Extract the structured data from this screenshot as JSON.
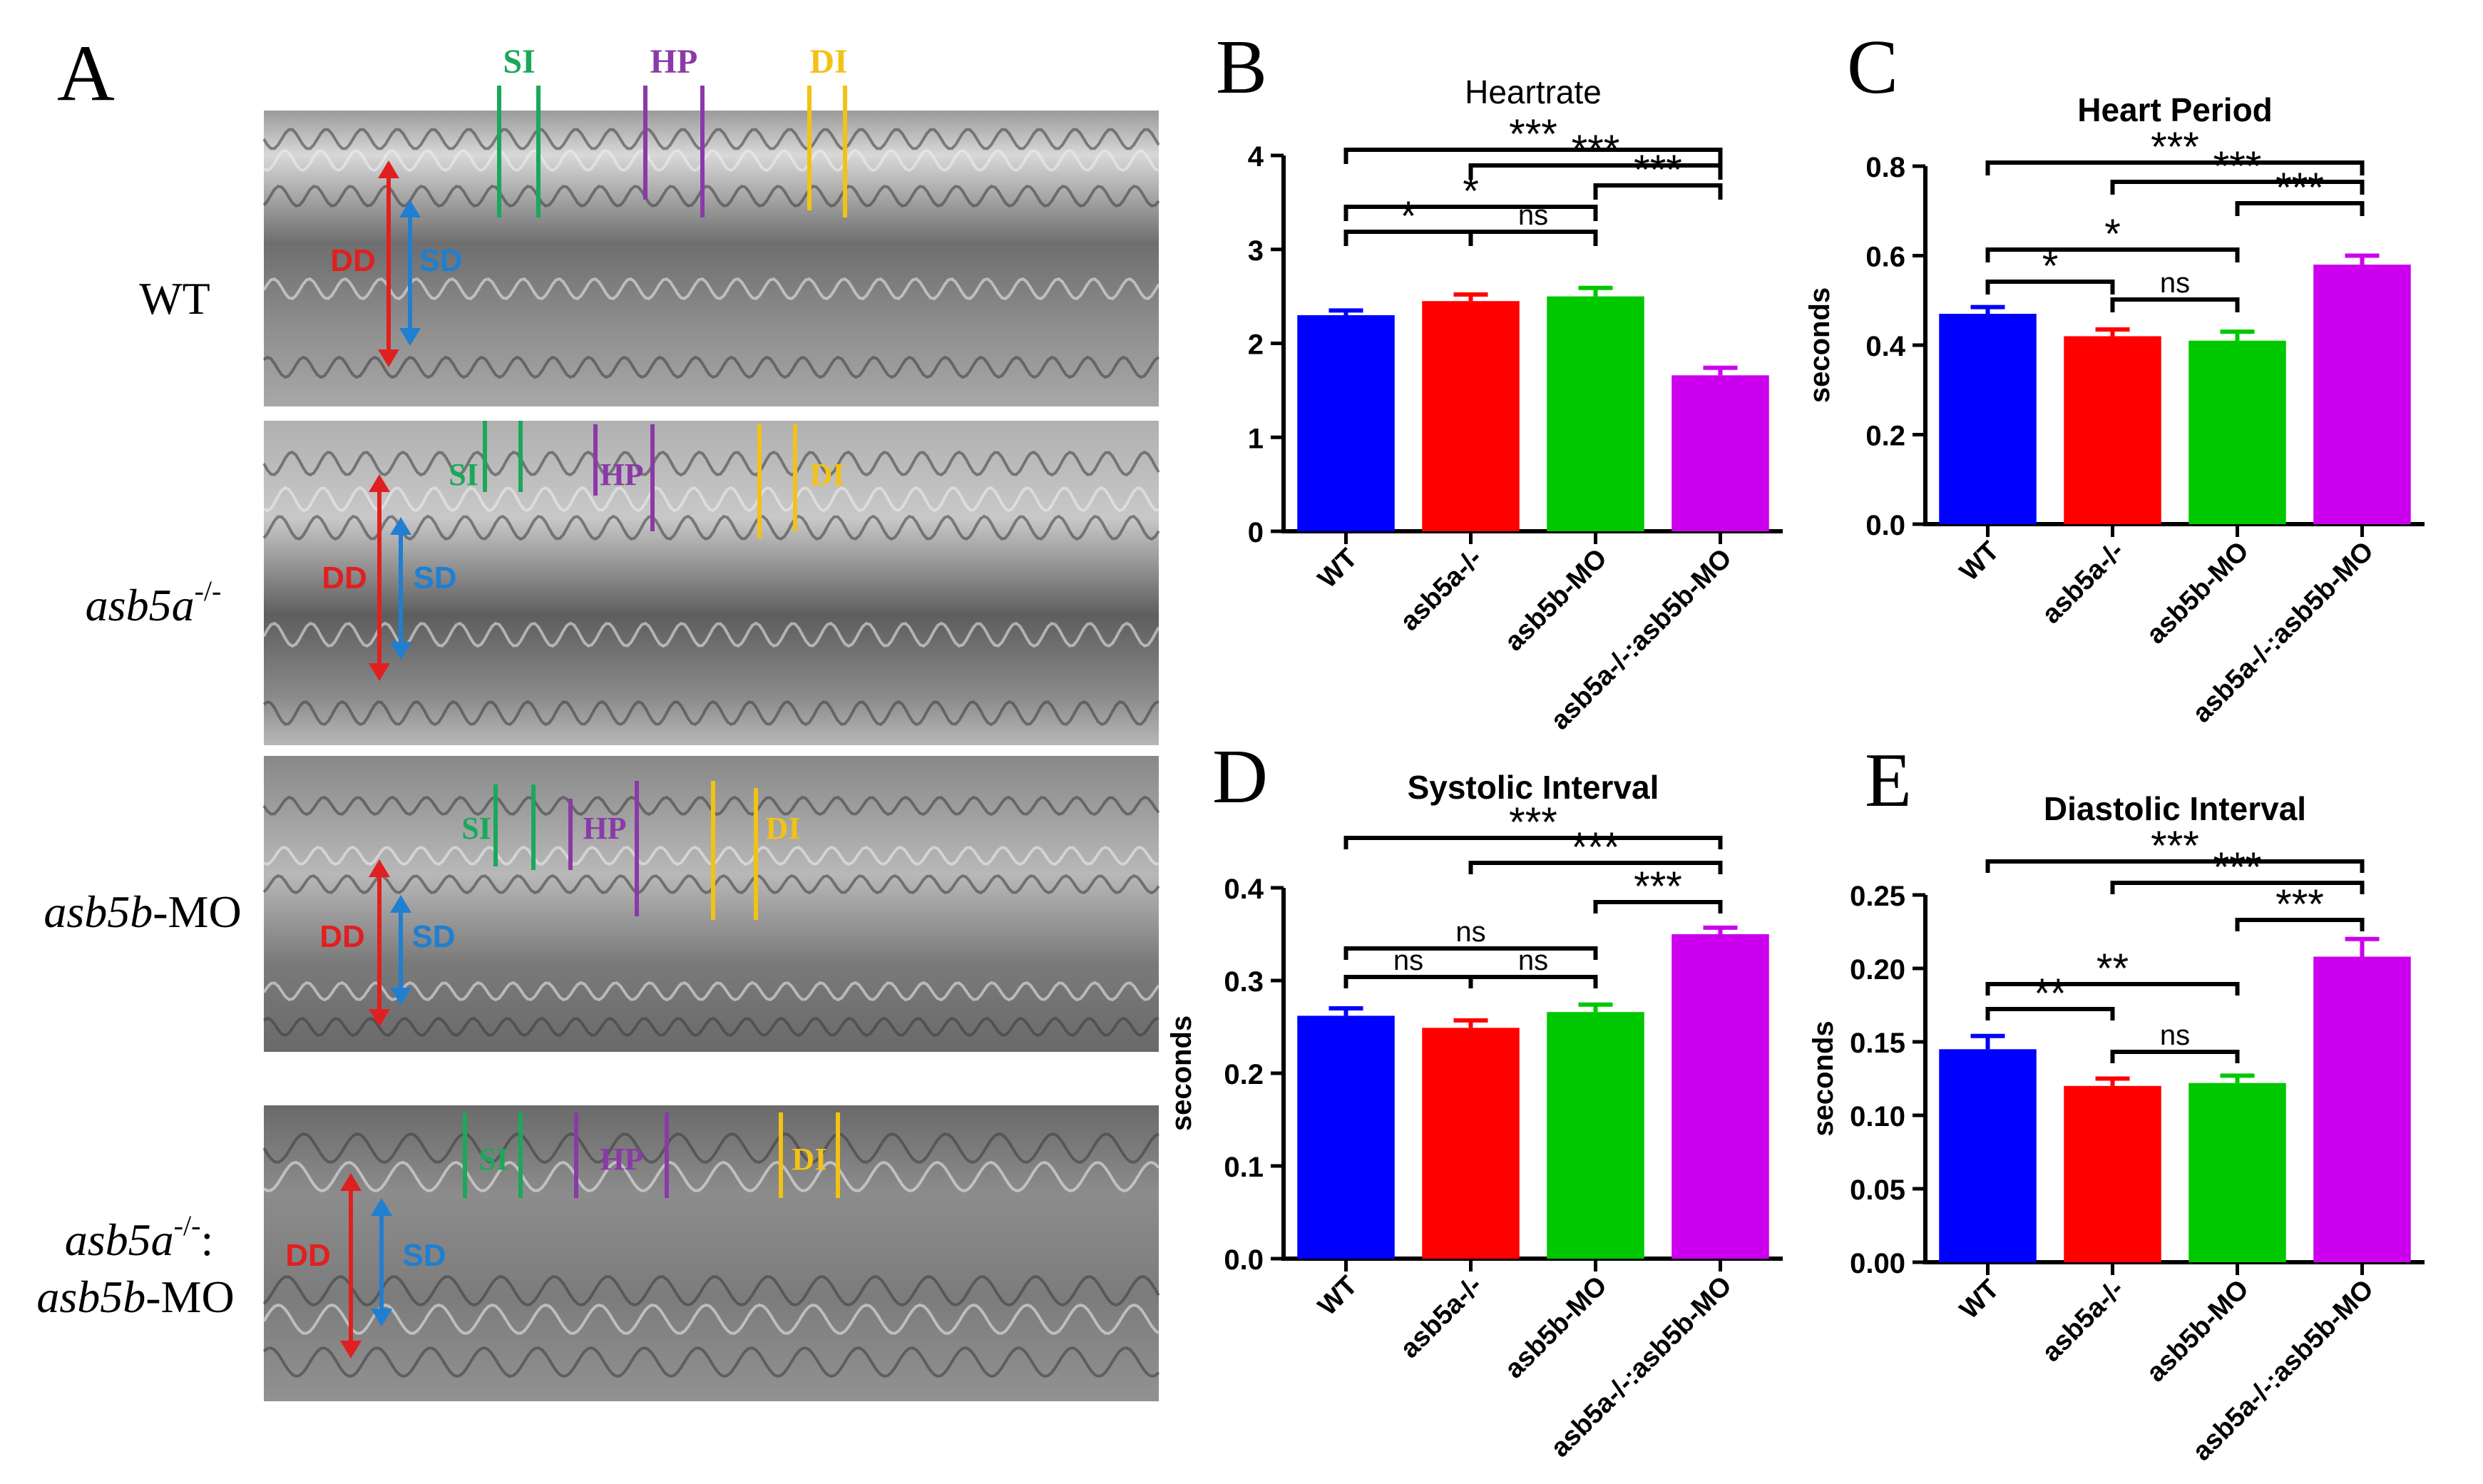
{
  "panel_a": {
    "letter": "A",
    "rows": [
      {
        "label": "WT"
      },
      {
        "label_main": "asb5a",
        "label_sup": "-/-"
      },
      {
        "label_main": "asb5b",
        "label_suffix": "-MO"
      },
      {
        "label_main": "asb5a",
        "label_sup": "-/-",
        "label_colon": ":",
        "label2_main": "asb5b",
        "label2_suffix": "-MO"
      }
    ],
    "markers": {
      "si": "SI",
      "hp": "HP",
      "di": "DI",
      "dd": "DD",
      "sd": "SD"
    },
    "colors": {
      "si": "#1aa85a",
      "hp": "#8a3aa8",
      "di": "#f2c215",
      "dd": "#e02020",
      "sd": "#1f7fd0"
    }
  },
  "colors": {
    "WT": "#0000ff",
    "asb5a-/-": "#ff0000",
    "asb5b-MO": "#00c800",
    "asb5a-/-:asb5b-MO": "#cc00ee"
  },
  "chart_data": [
    {
      "id": "B",
      "letter": "B",
      "type": "bar",
      "title": "Heartrate",
      "title_bold": false,
      "ylabel": "",
      "ylim": [
        0,
        4
      ],
      "yticks": [
        "0",
        "1",
        "2",
        "3",
        "4"
      ],
      "ytick_values": [
        0,
        1,
        2,
        3,
        4
      ],
      "categories": [
        "WT",
        "asb5a-/-",
        "asb5b-MO",
        "asb5a-/-:asb5b-MO"
      ],
      "values": [
        2.3,
        2.45,
        2.5,
        1.66
      ],
      "errors": [
        0.05,
        0.07,
        0.09,
        0.08
      ],
      "significance": [
        {
          "from": 0,
          "to": 1,
          "label": "*"
        },
        {
          "from": 1,
          "to": 2,
          "label": "ns"
        },
        {
          "from": 0,
          "to": 2,
          "label": "*"
        },
        {
          "from": 2,
          "to": 3,
          "label": "***"
        },
        {
          "from": 1,
          "to": 3,
          "label": "***"
        },
        {
          "from": 0,
          "to": 3,
          "label": "***"
        }
      ]
    },
    {
      "id": "C",
      "letter": "C",
      "type": "bar",
      "title": "Heart Period",
      "title_bold": true,
      "ylabel": "seconds",
      "ylim": [
        0,
        0.8
      ],
      "yticks": [
        "0.0",
        "0.2",
        "0.4",
        "0.6",
        "0.8"
      ],
      "ytick_values": [
        0,
        0.2,
        0.4,
        0.6,
        0.8
      ],
      "categories": [
        "WT",
        "asb5a-/-",
        "asb5b-MO",
        "asb5a-/-:asb5b-MO"
      ],
      "values": [
        0.47,
        0.42,
        0.41,
        0.58
      ],
      "errors": [
        0.015,
        0.015,
        0.02,
        0.02
      ],
      "significance": [
        {
          "from": 0,
          "to": 1,
          "label": "*"
        },
        {
          "from": 1,
          "to": 2,
          "label": "ns"
        },
        {
          "from": 0,
          "to": 2,
          "label": "*"
        },
        {
          "from": 2,
          "to": 3,
          "label": "***"
        },
        {
          "from": 1,
          "to": 3,
          "label": "***"
        },
        {
          "from": 0,
          "to": 3,
          "label": "***"
        }
      ]
    },
    {
      "id": "D",
      "letter": "D",
      "type": "bar",
      "title": "Systolic Interval",
      "title_bold": true,
      "ylabel": "seconds",
      "ylim": [
        0,
        0.4
      ],
      "yticks": [
        "0.0",
        "0.1",
        "0.2",
        "0.3",
        "0.4"
      ],
      "ytick_values": [
        0,
        0.1,
        0.2,
        0.3,
        0.4
      ],
      "categories": [
        "WT",
        "asb5a-/-",
        "asb5b-MO",
        "asb5a-/-:asb5b-MO"
      ],
      "values": [
        0.262,
        0.249,
        0.266,
        0.35
      ],
      "errors": [
        0.008,
        0.008,
        0.008,
        0.007
      ],
      "significance": [
        {
          "from": 0,
          "to": 1,
          "label": "ns"
        },
        {
          "from": 1,
          "to": 2,
          "label": "ns"
        },
        {
          "from": 0,
          "to": 2,
          "label": "ns"
        },
        {
          "from": 2,
          "to": 3,
          "label": "***"
        },
        {
          "from": 1,
          "to": 3,
          "label": "***"
        },
        {
          "from": 0,
          "to": 3,
          "label": "***"
        }
      ]
    },
    {
      "id": "E",
      "letter": "E",
      "type": "bar",
      "title": "Diastolic Interval",
      "title_bold": true,
      "ylabel": "seconds",
      "ylim": [
        0,
        0.25
      ],
      "yticks": [
        "0.00",
        "0.05",
        "0.10",
        "0.15",
        "0.20",
        "0.25"
      ],
      "ytick_values": [
        0,
        0.05,
        0.1,
        0.15,
        0.2,
        0.25
      ],
      "categories": [
        "WT",
        "asb5a-/-",
        "asb5b-MO",
        "asb5a-/-:asb5b-MO"
      ],
      "values": [
        0.145,
        0.12,
        0.122,
        0.208
      ],
      "errors": [
        0.009,
        0.005,
        0.005,
        0.012
      ],
      "significance": [
        {
          "from": 0,
          "to": 1,
          "label": "**"
        },
        {
          "from": 1,
          "to": 2,
          "label": "ns"
        },
        {
          "from": 0,
          "to": 2,
          "label": "**"
        },
        {
          "from": 2,
          "to": 3,
          "label": "***"
        },
        {
          "from": 1,
          "to": 3,
          "label": "***"
        },
        {
          "from": 0,
          "to": 3,
          "label": "***"
        }
      ]
    }
  ]
}
